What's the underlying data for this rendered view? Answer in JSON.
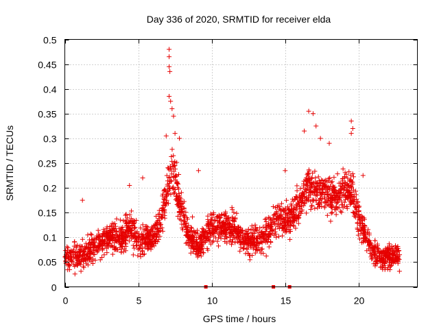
{
  "chart_data": {
    "type": "scatter",
    "title": "Day 336 of 2020, SRMTID for receiver elda",
    "xlabel": "GPS time / hours",
    "ylabel": "SRMTID / TECUs",
    "xlim": [
      0,
      24
    ],
    "ylim": [
      0,
      0.5
    ],
    "x_ticks": [
      0,
      5,
      10,
      15,
      20
    ],
    "x_tick_labels": [
      "0",
      "5",
      "10",
      "15",
      "20"
    ],
    "y_ticks": [
      0,
      0.05,
      0.1,
      0.15,
      0.2,
      0.25,
      0.3,
      0.35,
      0.4,
      0.45,
      0.5
    ],
    "y_tick_labels": [
      "0",
      "0.05",
      "0.1",
      "0.15",
      "0.2",
      "0.25",
      "0.3",
      "0.35",
      "0.4",
      "0.45",
      "0.5"
    ],
    "grid": true,
    "marker": "+",
    "series": [
      {
        "name": "SRMTID",
        "color": "#e60000",
        "trend_x": [
          0,
          1,
          2,
          3,
          4,
          4.5,
          5,
          5.5,
          6,
          6.5,
          7,
          7.3,
          7.8,
          8.3,
          9,
          9.5,
          10,
          10.5,
          11,
          11.5,
          12,
          12.5,
          13,
          13.5,
          14,
          14.5,
          15,
          15.5,
          16,
          16.5,
          17,
          17.5,
          18,
          18.5,
          19,
          19.5,
          20,
          20.5,
          21,
          21.5,
          22,
          22.8
        ],
        "trend_y": [
          0.06,
          0.06,
          0.08,
          0.1,
          0.1,
          0.12,
          0.09,
          0.1,
          0.1,
          0.13,
          0.2,
          0.24,
          0.17,
          0.12,
          0.08,
          0.1,
          0.12,
          0.12,
          0.12,
          0.12,
          0.1,
          0.09,
          0.09,
          0.1,
          0.12,
          0.14,
          0.13,
          0.14,
          0.17,
          0.2,
          0.2,
          0.19,
          0.18,
          0.18,
          0.2,
          0.19,
          0.14,
          0.1,
          0.07,
          0.06,
          0.06,
          0.06
        ],
        "spread": 0.032,
        "n_points": 2400,
        "peaks": [
          {
            "x": 7.1,
            "y": 0.48
          },
          {
            "x": 7.1,
            "y": 0.465
          },
          {
            "x": 7.1,
            "y": 0.445
          },
          {
            "x": 7.15,
            "y": 0.435
          },
          {
            "x": 7.1,
            "y": 0.385
          },
          {
            "x": 7.2,
            "y": 0.375
          },
          {
            "x": 7.3,
            "y": 0.36
          },
          {
            "x": 7.4,
            "y": 0.345
          },
          {
            "x": 6.9,
            "y": 0.305
          },
          {
            "x": 7.5,
            "y": 0.31
          },
          {
            "x": 7.8,
            "y": 0.3
          },
          {
            "x": 16.6,
            "y": 0.355
          },
          {
            "x": 16.9,
            "y": 0.35
          },
          {
            "x": 17.1,
            "y": 0.325
          },
          {
            "x": 19.5,
            "y": 0.335
          },
          {
            "x": 19.6,
            "y": 0.32
          },
          {
            "x": 19.5,
            "y": 0.31
          },
          {
            "x": 16.3,
            "y": 0.315
          },
          {
            "x": 18.0,
            "y": 0.29
          },
          {
            "x": 17.4,
            "y": 0.3
          },
          {
            "x": 1.2,
            "y": 0.175
          },
          {
            "x": 4.4,
            "y": 0.205
          },
          {
            "x": 5.3,
            "y": 0.22
          },
          {
            "x": 9.1,
            "y": 0.235
          },
          {
            "x": 15.0,
            "y": 0.235
          },
          {
            "x": 20.3,
            "y": 0.225
          }
        ],
        "zero_markers_x": [
          9.6,
          14.2,
          15.3
        ]
      }
    ]
  }
}
